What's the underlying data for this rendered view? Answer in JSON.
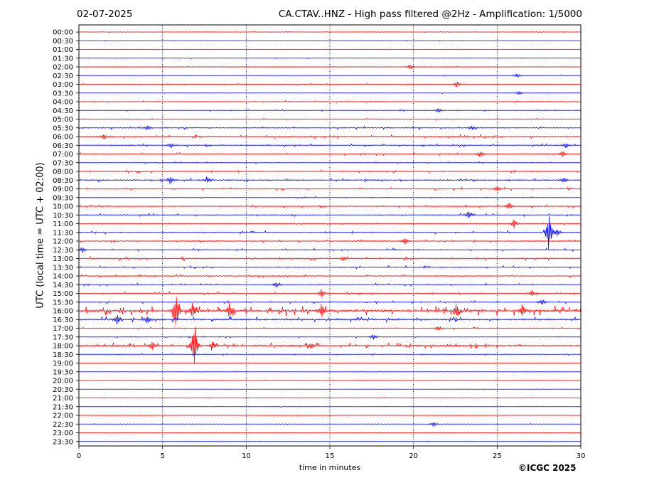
{
  "header": {
    "date": "02-07-2025",
    "title": "CA.CTAV..HNZ - High pass filtered @2Hz - Amplification: 1/5000"
  },
  "copyright": "©ICGC 2025",
  "chart_data": {
    "type": "line",
    "title": "CA.CTAV..HNZ - High pass filtered @2Hz - Amplification: 1/5000",
    "xlabel": "time in minutes",
    "ylabel": "UTC (local time = UTC + 02:00)",
    "xlim": [
      0,
      30
    ],
    "x_ticks": [
      0,
      5,
      10,
      15,
      20,
      25,
      30
    ],
    "vertical_gridlines_at": [
      5,
      10,
      15,
      20,
      25
    ],
    "rows": [
      "00:00",
      "00:30",
      "01:00",
      "01:30",
      "02:00",
      "02:30",
      "03:00",
      "03:30",
      "04:00",
      "04:30",
      "05:00",
      "05:30",
      "06:00",
      "06:30",
      "07:00",
      "07:30",
      "08:00",
      "08:30",
      "09:00",
      "09:30",
      "10:00",
      "10:30",
      "11:00",
      "11:30",
      "12:00",
      "12:30",
      "13:00",
      "13:30",
      "14:00",
      "14:30",
      "15:00",
      "15:30",
      "16:00",
      "16:30",
      "17:00",
      "17:30",
      "18:00",
      "18:30",
      "19:00",
      "19:30",
      "20:00",
      "20:30",
      "21:00",
      "21:30",
      "22:00",
      "22:30",
      "23:00",
      "23:30"
    ],
    "row_colors": [
      "#ff0000",
      "#0000ff"
    ],
    "noise_levels": [
      1,
      1,
      1,
      1,
      1,
      1,
      2,
      1,
      2,
      2,
      2,
      3,
      4,
      3,
      3,
      2,
      3,
      4,
      3,
      2,
      3,
      3,
      2,
      3,
      3,
      3,
      4,
      3,
      3,
      3,
      3,
      3,
      10,
      6,
      2,
      2,
      6,
      2,
      1,
      1,
      1,
      1,
      1,
      1,
      1,
      1,
      1,
      1
    ],
    "events": [
      {
        "row": "02:00",
        "minute": 19.8,
        "amp": 4
      },
      {
        "row": "02:30",
        "minute": 26.2,
        "amp": 4
      },
      {
        "row": "03:00",
        "minute": 22.6,
        "amp": 5
      },
      {
        "row": "03:30",
        "minute": 26.3,
        "amp": 3
      },
      {
        "row": "04:30",
        "minute": 21.5,
        "amp": 3
      },
      {
        "row": "05:30",
        "minute": 4.1,
        "amp": 4
      },
      {
        "row": "05:30",
        "minute": 23.5,
        "amp": 3
      },
      {
        "row": "06:00",
        "minute": 1.5,
        "amp": 4
      },
      {
        "row": "06:30",
        "minute": 5.5,
        "amp": 4
      },
      {
        "row": "06:30",
        "minute": 29.1,
        "amp": 4
      },
      {
        "row": "07:00",
        "minute": 24.0,
        "amp": 6
      },
      {
        "row": "07:00",
        "minute": 28.9,
        "amp": 5
      },
      {
        "row": "08:30",
        "minute": 5.5,
        "amp": 6
      },
      {
        "row": "08:30",
        "minute": 7.7,
        "amp": 5
      },
      {
        "row": "08:30",
        "minute": 29.0,
        "amp": 5
      },
      {
        "row": "09:00",
        "minute": 25.0,
        "amp": 4
      },
      {
        "row": "10:00",
        "minute": 25.7,
        "amp": 6
      },
      {
        "row": "10:30",
        "minute": 23.3,
        "amp": 6
      },
      {
        "row": "11:00",
        "minute": 26.0,
        "amp": 8
      },
      {
        "row": "11:30",
        "minute": 28.1,
        "amp": 32
      },
      {
        "row": "11:30",
        "minute": 28.6,
        "amp": 6
      },
      {
        "row": "12:00",
        "minute": 19.5,
        "amp": 7
      },
      {
        "row": "12:30",
        "minute": 0.2,
        "amp": 5
      },
      {
        "row": "13:00",
        "minute": 15.8,
        "amp": 4
      },
      {
        "row": "14:30",
        "minute": 11.8,
        "amp": 4
      },
      {
        "row": "15:00",
        "minute": 14.5,
        "amp": 7
      },
      {
        "row": "15:00",
        "minute": 27.1,
        "amp": 5
      },
      {
        "row": "15:30",
        "minute": 27.7,
        "amp": 5
      },
      {
        "row": "16:00",
        "minute": 5.8,
        "amp": 30
      },
      {
        "row": "16:00",
        "minute": 6.8,
        "amp": 14
      },
      {
        "row": "16:00",
        "minute": 9.0,
        "amp": 12
      },
      {
        "row": "16:00",
        "minute": 14.5,
        "amp": 12
      },
      {
        "row": "16:00",
        "minute": 22.6,
        "amp": 10
      },
      {
        "row": "16:00",
        "minute": 26.5,
        "amp": 10
      },
      {
        "row": "16:30",
        "minute": 2.3,
        "amp": 9
      },
      {
        "row": "16:30",
        "minute": 4.1,
        "amp": 8
      },
      {
        "row": "17:00",
        "minute": 21.5,
        "amp": 4
      },
      {
        "row": "17:30",
        "minute": 17.6,
        "amp": 4
      },
      {
        "row": "18:00",
        "minute": 6.9,
        "amp": 40
      },
      {
        "row": "18:00",
        "minute": 4.4,
        "amp": 7
      },
      {
        "row": "18:00",
        "minute": 8.0,
        "amp": 7
      },
      {
        "row": "18:00",
        "minute": 13.9,
        "amp": 5
      },
      {
        "row": "22:30",
        "minute": 21.2,
        "amp": 4
      }
    ]
  }
}
